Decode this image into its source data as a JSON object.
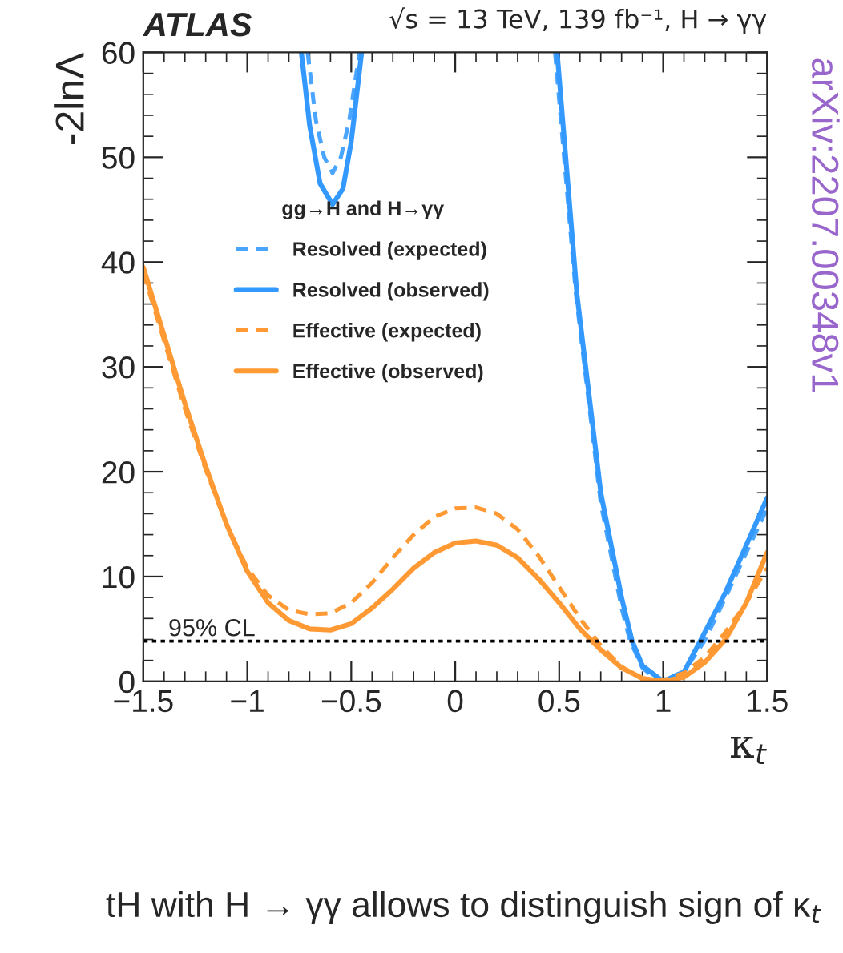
{
  "chart_data": {
    "type": "line",
    "title": "ATLAS",
    "subtitle": "√s = 13 TeV, 139 fb⁻¹, H → γγ",
    "xlabel": "κ$_{t}$",
    "ylabel": "-2lnΛ",
    "legend_title": "gg→H and H→γγ",
    "legend": "left",
    "grid": false,
    "xlim": [
      -1.5,
      1.5
    ],
    "ylim": [
      0,
      60
    ],
    "xticks": [
      {
        "value": -1.5,
        "label": "−1.5"
      },
      {
        "value": -1,
        "label": "−1"
      },
      {
        "value": -0.5,
        "label": "−0.5"
      },
      0,
      0.5,
      1,
      1.5
    ],
    "yticks": [
      0,
      10,
      20,
      30,
      40,
      50,
      60
    ],
    "series": [
      {
        "name": "Resolved (expected)",
        "color": "#4aa5ff",
        "line_style": "dashed",
        "x": [
          -0.71,
          -0.67,
          -0.63,
          -0.59,
          -0.55,
          -0.51,
          -0.46,
          0,
          0.48,
          0.58,
          0.7,
          0.8,
          0.84,
          0.9,
          0.98,
          1.1,
          1.2,
          1.3,
          1.4,
          1.5
        ],
        "values": [
          60,
          53.5,
          50,
          48.5,
          50,
          53.5,
          60,
          null,
          60,
          37,
          17,
          7,
          3.9,
          1.3,
          0,
          0.9,
          3.9,
          8,
          12.3,
          16.5
        ]
      },
      {
        "name": "Resolved (observed)",
        "color": "#3399ff",
        "line_style": "solid",
        "x": [
          -0.74,
          -0.7,
          -0.65,
          -0.59,
          -0.54,
          -0.5,
          -0.45,
          0,
          0.49,
          0.585,
          0.7,
          0.8,
          0.85,
          0.9,
          1.0,
          1.1,
          1.18,
          1.3,
          1.4,
          1.5
        ],
        "values": [
          60,
          53,
          47.5,
          45.5,
          47,
          51.5,
          60,
          null,
          60,
          37,
          18,
          8,
          3.9,
          1.5,
          0,
          0.9,
          3.9,
          8.5,
          13,
          17.5
        ]
      },
      {
        "name": "Effective (expected)",
        "color": "#ff9933",
        "line_style": "dashed",
        "x": [
          -1.5,
          -1.4,
          -1.3,
          -1.2,
          -1.1,
          -1.0,
          -0.9,
          -0.8,
          -0.7,
          -0.6,
          -0.5,
          -0.4,
          -0.3,
          -0.2,
          -0.1,
          0,
          0.1,
          0.2,
          0.3,
          0.4,
          0.5,
          0.6,
          0.7,
          0.8,
          0.9,
          0.95,
          1.0,
          1.1,
          1.2,
          1.3,
          1.4,
          1.5
        ],
        "values": [
          39,
          32.5,
          26,
          20.2,
          15,
          10.8,
          8.2,
          6.8,
          6.4,
          6.5,
          7.5,
          9.4,
          11.8,
          14,
          15.7,
          16.5,
          16.6,
          16,
          14.5,
          12,
          9,
          6,
          3.4,
          1.4,
          0.2,
          0,
          0.1,
          0.8,
          2.3,
          4.7,
          7.5,
          10.8
        ]
      },
      {
        "name": "Effective (observed)",
        "color": "#ff9933",
        "line_style": "solid",
        "x": [
          -1.5,
          -1.4,
          -1.3,
          -1.2,
          -1.1,
          -1.0,
          -0.9,
          -0.8,
          -0.7,
          -0.6,
          -0.5,
          -0.4,
          -0.3,
          -0.2,
          -0.1,
          0,
          0.1,
          0.2,
          0.3,
          0.4,
          0.5,
          0.6,
          0.7,
          0.8,
          0.9,
          1.0,
          1.1,
          1.2,
          1.3,
          1.4,
          1.5
        ],
        "values": [
          39.5,
          33,
          26.5,
          20.5,
          15,
          10.5,
          7.5,
          5.8,
          5,
          4.9,
          5.5,
          7,
          8.8,
          10.8,
          12.3,
          13.2,
          13.4,
          13,
          11.8,
          9.8,
          7.5,
          5,
          3,
          1.3,
          0.3,
          0,
          0.4,
          1.8,
          4,
          7.5,
          12.3
        ]
      }
    ],
    "ref_lines": [
      {
        "axis": "y",
        "value": 3.84,
        "label": "95% CL",
        "color": "#000000",
        "line_style": "dotted"
      }
    ],
    "annotations": [
      "arXiv:2207.00348v1",
      "tH with H → γγ allows to distinguish sign of κ$_{t}$"
    ]
  }
}
